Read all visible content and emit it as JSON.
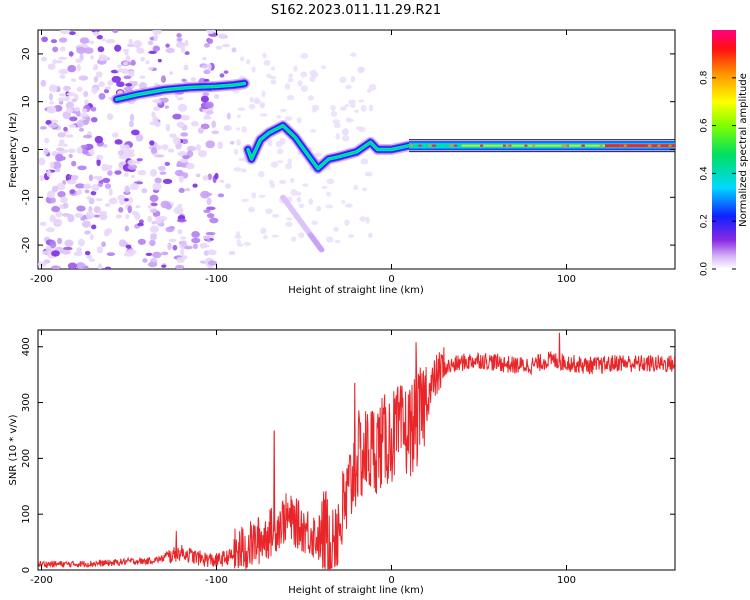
{
  "title": "S162.2023.011.11.29.R21",
  "chart_data": [
    {
      "type": "heatmap",
      "xlabel": "Height of straight line (km)",
      "ylabel": "Frequency (Hz)",
      "xlim": [
        -202,
        162
      ],
      "ylim": [
        -25,
        25
      ],
      "xticks": [
        -200,
        -100,
        0,
        100
      ],
      "yticks": [
        20,
        10,
        0,
        -10,
        -20
      ],
      "colorbar": {
        "label": "Normalized spectral amplitude",
        "range": [
          0,
          1
        ],
        "ticks": [
          "0.0",
          "0.2",
          "0.4",
          "0.6",
          "0.8"
        ],
        "colormap": "rainbow (violet to red)"
      },
      "ridge": [
        {
          "x": -157,
          "freq": 10.5
        },
        {
          "x": -145,
          "freq": 11.5
        },
        {
          "x": -130,
          "freq": 12.5
        },
        {
          "x": -115,
          "freq": 13
        },
        {
          "x": -100,
          "freq": 13.2
        },
        {
          "x": -90,
          "freq": 13.5
        },
        {
          "x": -84,
          "freq": 13.8
        },
        {
          "x": -82,
          "freq": 0
        },
        {
          "x": -80,
          "freq": -2
        },
        {
          "x": -75,
          "freq": 2
        },
        {
          "x": -70,
          "freq": 3.5
        },
        {
          "x": -62,
          "freq": 5
        },
        {
          "x": -55,
          "freq": 2.5
        },
        {
          "x": -48,
          "freq": -1
        },
        {
          "x": -42,
          "freq": -4
        },
        {
          "x": -36,
          "freq": -2
        },
        {
          "x": -30,
          "freq": -1.5
        },
        {
          "x": -20,
          "freq": -0.5
        },
        {
          "x": -12,
          "freq": 1.5
        },
        {
          "x": -8,
          "freq": 0
        },
        {
          "x": 0,
          "freq": 0
        },
        {
          "x": 10,
          "freq": 0.8
        },
        {
          "x": 160,
          "freq": 0.8
        }
      ]
    },
    {
      "type": "line",
      "xlabel": "Height of straight line (km)",
      "ylabel": "SNR (10 * v/v)",
      "xlim": [
        -202,
        162
      ],
      "ylim": [
        0,
        430
      ],
      "xticks": [
        -200,
        -100,
        0,
        100
      ],
      "yticks": [
        0,
        100,
        200,
        300,
        400
      ],
      "color": "#e8262a",
      "series": [
        {
          "x": [
            -202,
            -180,
            -160,
            -150,
            -140,
            -130,
            -120,
            -110,
            -100,
            -90,
            -80,
            -70,
            -60,
            -50,
            -40,
            -30,
            -25,
            -20,
            -15,
            -10,
            -5,
            0,
            5,
            10,
            15,
            20,
            25,
            30,
            40,
            50,
            60,
            70,
            80,
            90,
            100,
            110,
            120,
            130,
            140,
            150,
            162
          ],
          "values": [
            10,
            10,
            12,
            15,
            15,
            20,
            30,
            20,
            15,
            25,
            40,
            60,
            90,
            70,
            50,
            70,
            120,
            190,
            200,
            210,
            220,
            230,
            240,
            240,
            260,
            300,
            340,
            360,
            370,
            375,
            370,
            365,
            365,
            375,
            370,
            365,
            365,
            370,
            368,
            368,
            368
          ],
          "peaks": [
            {
              "x": -123,
              "y": 70
            },
            {
              "x": -67,
              "y": 250
            },
            {
              "x": -21,
              "y": 335
            },
            {
              "x": 14,
              "y": 408
            },
            {
              "x": 96,
              "y": 425
            }
          ]
        }
      ]
    }
  ]
}
